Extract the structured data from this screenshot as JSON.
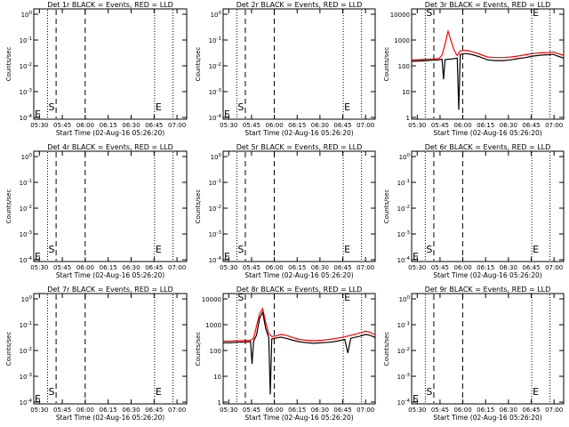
{
  "chart_data": [
    {
      "type": "line",
      "title": "Det 1r BLACK = Events, RED = LLD",
      "xlabel": "Start Time (02-Aug-16 05:26:20)",
      "ylabel": "Counts/sec",
      "x_ticks": [
        "05:30",
        "05:45",
        "06:00",
        "06:15",
        "06:30",
        "06:45",
        "07:00"
      ],
      "x_range_minutes": [
        0,
        100
      ],
      "y_scale": "log",
      "y_ticks": [
        "10^0",
        "10^-1",
        "10^-2",
        "10^-3",
        "10^-4"
      ],
      "y_exp": [
        0,
        -1,
        -2,
        -3,
        -4
      ],
      "markers": {
        "S": "S",
        "E": "E"
      },
      "series": []
    },
    {
      "type": "line",
      "title": "Det 2r BLACK = Events, RED = LLD",
      "xlabel": "Start Time (02-Aug-16 05:26:20)",
      "ylabel": "Counts/sec",
      "x_ticks": [
        "05:30",
        "05:45",
        "06:00",
        "06:15",
        "06:30",
        "06:45",
        "07:00"
      ],
      "x_range_minutes": [
        0,
        100
      ],
      "y_scale": "log",
      "y_ticks": [
        "10^0",
        "10^-1",
        "10^-2",
        "10^-3",
        "10^-4"
      ],
      "y_exp": [
        0,
        -1,
        -2,
        -3,
        -4
      ],
      "markers": {
        "S": "S",
        "E": "E"
      },
      "series": []
    },
    {
      "type": "line",
      "title": "Det 3r BLACK = Events, RED = LLD",
      "xlabel": "Start Time (02-Aug-16 05:26:20)",
      "ylabel": "Counts/sec",
      "x_ticks": [
        "05:30",
        "05:45",
        "06:00",
        "06:15",
        "06:30",
        "06:45",
        "07:00"
      ],
      "x_range_minutes": [
        0,
        100
      ],
      "y_scale": "log",
      "y_ticks": [
        "10000",
        "1000",
        "100",
        "10",
        "1"
      ],
      "y_exp": [
        4,
        3,
        2,
        1,
        0
      ],
      "markers": {
        "S": "S",
        "E": "E"
      },
      "series": [
        {
          "color": "#ff0000",
          "x": [
            0,
            5,
            10,
            14,
            18,
            20,
            22,
            24,
            26,
            28,
            30,
            32,
            36,
            40,
            45,
            50,
            55,
            60,
            65,
            70,
            75,
            80,
            85,
            90,
            93,
            96,
            100
          ],
          "y": [
            170,
            175,
            180,
            185,
            190,
            260,
            700,
            2200,
            900,
            400,
            250,
            380,
            400,
            350,
            280,
            220,
            210,
            210,
            220,
            240,
            270,
            300,
            320,
            330,
            350,
            300,
            260
          ]
        },
        {
          "color": "#000000",
          "x": [
            0,
            5,
            10,
            14,
            18,
            20,
            21,
            22,
            24,
            26,
            28,
            30,
            31,
            32,
            36,
            40,
            45,
            50,
            55,
            60,
            65,
            70,
            75,
            80,
            85,
            90,
            93,
            96,
            100
          ],
          "y": [
            150,
            155,
            160,
            165,
            170,
            180,
            30,
            175,
            180,
            185,
            190,
            200,
            2,
            280,
            300,
            270,
            220,
            170,
            160,
            160,
            170,
            190,
            210,
            240,
            260,
            270,
            280,
            240,
            200
          ]
        }
      ]
    },
    {
      "type": "line",
      "title": "Det 4r BLACK = Events, RED = LLD",
      "xlabel": "Start Time (02-Aug-16 05:26:20)",
      "ylabel": "Counts/sec",
      "x_ticks": [
        "05:30",
        "05:45",
        "06:00",
        "06:15",
        "06:30",
        "06:45",
        "07:00"
      ],
      "x_range_minutes": [
        0,
        100
      ],
      "y_scale": "log",
      "y_ticks": [
        "10^0",
        "10^-1",
        "10^-2",
        "10^-3",
        "10^-4"
      ],
      "y_exp": [
        0,
        -1,
        -2,
        -3,
        -4
      ],
      "markers": {
        "S": "S",
        "E": "E"
      },
      "series": []
    },
    {
      "type": "line",
      "title": "Det 5r BLACK = Events, RED = LLD",
      "xlabel": "Start Time (02-Aug-16 05:26:20)",
      "ylabel": "Counts/sec",
      "x_ticks": [
        "05:30",
        "05:45",
        "06:00",
        "06:15",
        "06:30",
        "06:45",
        "07:00"
      ],
      "x_range_minutes": [
        0,
        100
      ],
      "y_scale": "log",
      "y_ticks": [
        "10^0",
        "10^-1",
        "10^-2",
        "10^-3",
        "10^-4"
      ],
      "y_exp": [
        0,
        -1,
        -2,
        -3,
        -4
      ],
      "markers": {
        "S": "S",
        "E": "E"
      },
      "series": []
    },
    {
      "type": "line",
      "title": "Det 6r BLACK = Events, RED = LLD",
      "xlabel": "Start Time (02-Aug-16 05:26:20)",
      "ylabel": "Counts/sec",
      "x_ticks": [
        "05:30",
        "05:45",
        "06:00",
        "06:15",
        "06:30",
        "06:45",
        "07:00"
      ],
      "x_range_minutes": [
        0,
        100
      ],
      "y_scale": "log",
      "y_ticks": [
        "10^0",
        "10^-1",
        "10^-2",
        "10^-3",
        "10^-4"
      ],
      "y_exp": [
        0,
        -1,
        -2,
        -3,
        -4
      ],
      "markers": {
        "S": "S",
        "E": "E"
      },
      "series": []
    },
    {
      "type": "line",
      "title": "Det 7r BLACK = Events, RED = LLD",
      "xlabel": "Start Time (02-Aug-16 05:26:20)",
      "ylabel": "Counts/sec",
      "x_ticks": [
        "05:30",
        "05:45",
        "06:00",
        "06:15",
        "06:30",
        "06:45",
        "07:00"
      ],
      "x_range_minutes": [
        0,
        100
      ],
      "y_scale": "log",
      "y_ticks": [
        "10^0",
        "10^-1",
        "10^-2",
        "10^-3",
        "10^-4"
      ],
      "y_exp": [
        0,
        -1,
        -2,
        -3,
        -4
      ],
      "markers": {
        "S": "S",
        "E": "E"
      },
      "series": []
    },
    {
      "type": "line",
      "title": "Det 8r BLACK = Events, RED = LLD",
      "xlabel": "Start Time (02-Aug-16 05:26:20)",
      "ylabel": "Counts/sec",
      "x_ticks": [
        "05:30",
        "05:45",
        "06:00",
        "06:15",
        "06:30",
        "06:45",
        "07:00"
      ],
      "x_range_minutes": [
        0,
        100
      ],
      "y_scale": "log",
      "y_ticks": [
        "10000",
        "1000",
        "100",
        "10",
        "1"
      ],
      "y_exp": [
        4,
        3,
        2,
        1,
        0
      ],
      "markers": {
        "S": "S",
        "E": "E"
      },
      "series": [
        {
          "color": "#ff0000",
          "x": [
            0,
            5,
            10,
            15,
            18,
            20,
            22,
            24,
            26,
            28,
            30,
            32,
            34,
            38,
            42,
            46,
            50,
            55,
            60,
            65,
            70,
            75,
            80,
            85,
            90,
            94,
            97,
            100
          ],
          "y": [
            230,
            230,
            240,
            245,
            250,
            300,
            900,
            2600,
            4200,
            1200,
            450,
            350,
            360,
            420,
            380,
            320,
            270,
            250,
            240,
            250,
            270,
            300,
            340,
            400,
            480,
            560,
            500,
            400
          ]
        },
        {
          "color": "#000000",
          "x": [
            0,
            5,
            10,
            15,
            18,
            19,
            20,
            22,
            24,
            26,
            28,
            30,
            31,
            32,
            34,
            38,
            42,
            46,
            50,
            55,
            60,
            65,
            70,
            75,
            80,
            82,
            84,
            90,
            94,
            97,
            100
          ],
          "y": [
            200,
            200,
            210,
            215,
            220,
            30,
            225,
            400,
            1800,
            3000,
            700,
            320,
            2,
            280,
            300,
            330,
            290,
            250,
            220,
            200,
            190,
            200,
            210,
            230,
            270,
            80,
            300,
            360,
            420,
            380,
            320
          ]
        }
      ]
    },
    {
      "type": "line",
      "title": "Det 9r BLACK = Events, RED = LLD",
      "xlabel": "Start Time (02-Aug-16 05:26:20)",
      "ylabel": "Counts/sec",
      "x_ticks": [
        "05:30",
        "05:45",
        "06:00",
        "06:15",
        "06:30",
        "06:45",
        "07:00"
      ],
      "x_range_minutes": [
        0,
        100
      ],
      "y_scale": "log",
      "y_ticks": [
        "10^0",
        "10^-1",
        "10^-2",
        "10^-3",
        "10^-4"
      ],
      "y_exp": [
        0,
        -1,
        -2,
        -3,
        -4
      ],
      "markers": {
        "S": "S",
        "E": "E"
      },
      "series": []
    }
  ]
}
